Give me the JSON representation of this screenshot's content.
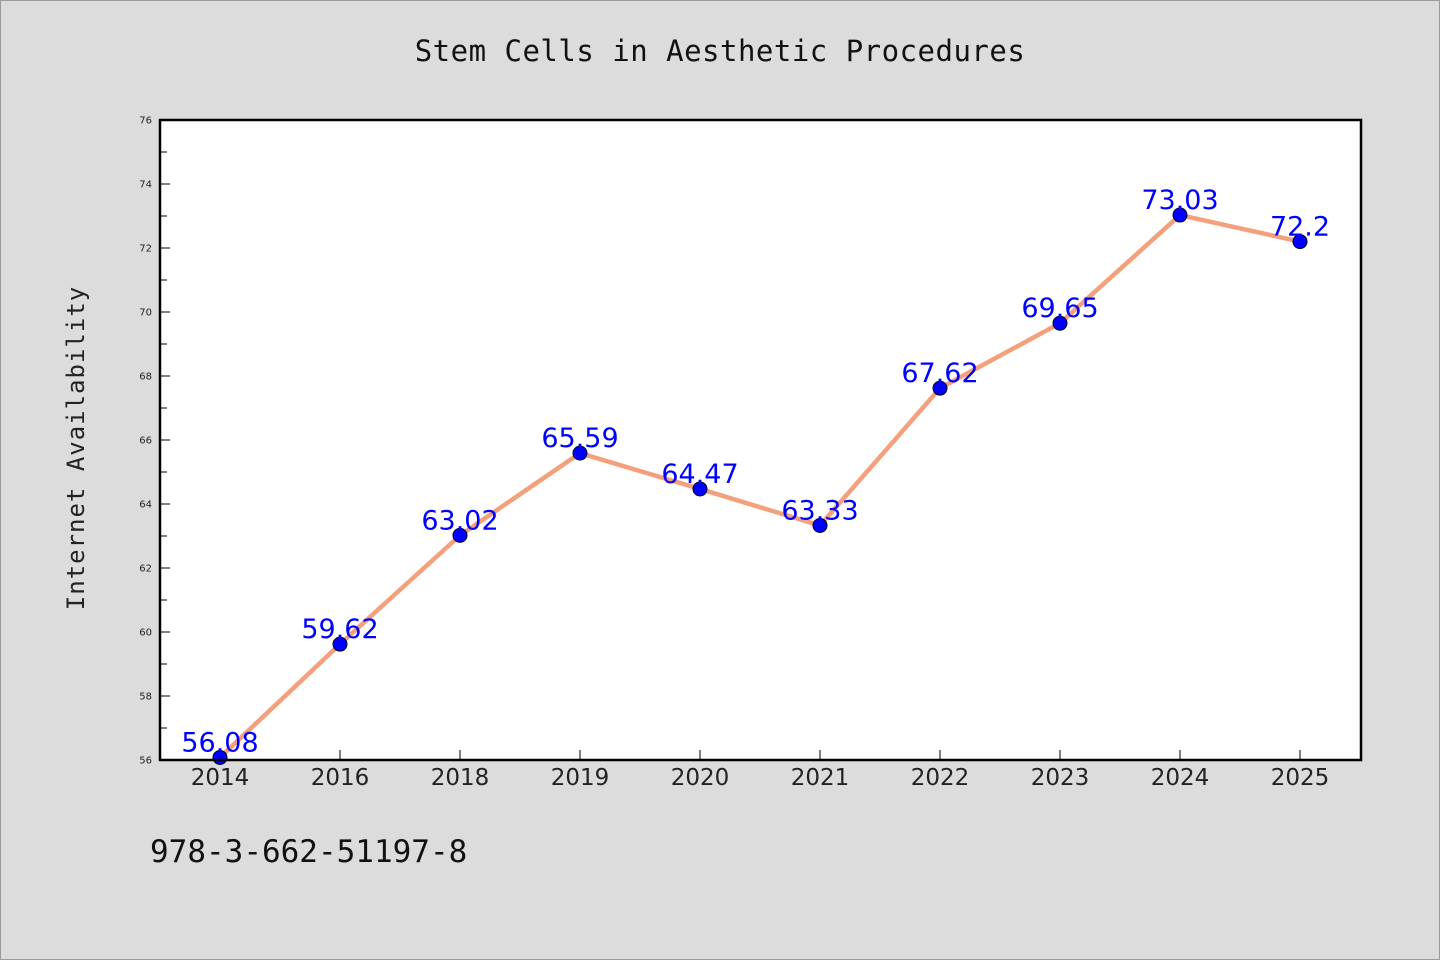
{
  "footer": {
    "code": "978-3-662-51197-8"
  },
  "colors": {
    "background": "#dcdcdc",
    "plot_background": "#ffffff",
    "line": "#f4a07c",
    "marker": "#0000ff",
    "data_label": "#0000ff"
  },
  "chart_data": {
    "type": "line",
    "title": "Stem Cells in Aesthetic Procedures",
    "xlabel": "",
    "ylabel": "Internet Availability",
    "categories": [
      "2014",
      "2016",
      "2018",
      "2019",
      "2020",
      "2021",
      "2022",
      "2023",
      "2024",
      "2025"
    ],
    "series": [
      {
        "values": [
          56.08,
          59.62,
          63.02,
          65.59,
          64.47,
          63.33,
          67.62,
          69.65,
          73.03,
          72.2
        ],
        "labels": [
          "56.08",
          "59.62",
          "63.02",
          "65.59",
          "64.47",
          "63.33",
          "67.62",
          "69.65",
          "73.03",
          "72.2"
        ]
      }
    ],
    "ylim": [
      56,
      76
    ],
    "yticks": [
      "56",
      "58",
      "60",
      "62",
      "64",
      "66",
      "68",
      "70",
      "72",
      "74",
      "76"
    ],
    "grid": false,
    "legend": "none"
  }
}
